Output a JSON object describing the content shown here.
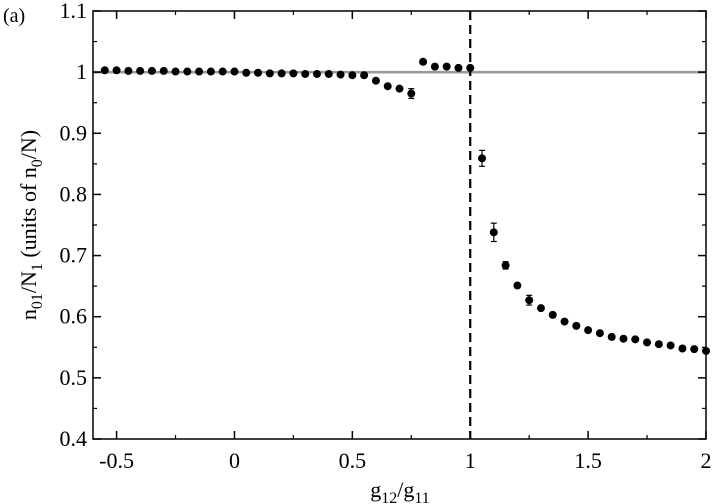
{
  "panel_label": "(a)",
  "chart_data": {
    "type": "scatter",
    "title": "",
    "xlabel": {
      "text": "g",
      "parts": [
        {
          "t": "g"
        },
        {
          "t": "12",
          "sub": true
        },
        {
          "t": "/g"
        },
        {
          "t": "11",
          "sub": true
        }
      ]
    },
    "ylabel": {
      "text": "n01/N1 (units of n0/N)",
      "parts": [
        {
          "t": "n"
        },
        {
          "t": "01",
          "sub": true
        },
        {
          "t": "/N"
        },
        {
          "t": "1",
          "sub": true
        },
        {
          "t": "  (units of n"
        },
        {
          "t": "0",
          "sub": true
        },
        {
          "t": "/N)"
        }
      ]
    },
    "xlim": [
      -0.6,
      2.0
    ],
    "ylim": [
      0.4,
      1.1
    ],
    "xticks": [
      {
        "v": -0.5,
        "label": "-0.5"
      },
      {
        "v": 0,
        "label": "0"
      },
      {
        "v": 0.5,
        "label": "0.5"
      },
      {
        "v": 1,
        "label": "1"
      },
      {
        "v": 1.5,
        "label": "1.5"
      },
      {
        "v": 2,
        "label": "2"
      }
    ],
    "yticks": [
      {
        "v": 0.4,
        "label": "0.4"
      },
      {
        "v": 0.5,
        "label": "0.5"
      },
      {
        "v": 0.6,
        "label": "0.6"
      },
      {
        "v": 0.7,
        "label": "0.7"
      },
      {
        "v": 0.8,
        "label": "0.8"
      },
      {
        "v": 0.9,
        "label": "0.9"
      },
      {
        "v": 1,
        "label": "1"
      },
      {
        "v": 1.1,
        "label": "1.1"
      }
    ],
    "reference_lines": [
      {
        "orientation": "horizontal",
        "value": 1.0,
        "style": "solid",
        "color": "#999999"
      },
      {
        "orientation": "vertical",
        "value": 1.0,
        "style": "dashed",
        "color": "#000000"
      }
    ],
    "series": [
      {
        "marker": "circle",
        "color": "#000000",
        "points": [
          {
            "x": -0.55,
            "y": 1.003
          },
          {
            "x": -0.5,
            "y": 1.003
          },
          {
            "x": -0.45,
            "y": 1.002
          },
          {
            "x": -0.4,
            "y": 1.002
          },
          {
            "x": -0.35,
            "y": 1.002
          },
          {
            "x": -0.3,
            "y": 1.002
          },
          {
            "x": -0.25,
            "y": 1.001
          },
          {
            "x": -0.2,
            "y": 1.001
          },
          {
            "x": -0.15,
            "y": 1.001
          },
          {
            "x": -0.1,
            "y": 1.001
          },
          {
            "x": -0.05,
            "y": 1.001
          },
          {
            "x": 0.0,
            "y": 1.001
          },
          {
            "x": 0.05,
            "y": 0.999
          },
          {
            "x": 0.1,
            "y": 0.999
          },
          {
            "x": 0.15,
            "y": 0.998
          },
          {
            "x": 0.2,
            "y": 0.998
          },
          {
            "x": 0.25,
            "y": 0.998
          },
          {
            "x": 0.3,
            "y": 0.997
          },
          {
            "x": 0.35,
            "y": 0.997
          },
          {
            "x": 0.4,
            "y": 0.997
          },
          {
            "x": 0.45,
            "y": 0.996
          },
          {
            "x": 0.5,
            "y": 0.995
          },
          {
            "x": 0.55,
            "y": 0.995
          },
          {
            "x": 0.6,
            "y": 0.986
          },
          {
            "x": 0.65,
            "y": 0.977
          },
          {
            "x": 0.7,
            "y": 0.973
          },
          {
            "x": 0.75,
            "y": 0.965,
            "err": 0.008
          },
          {
            "x": 0.8,
            "y": 1.017
          },
          {
            "x": 0.85,
            "y": 1.009
          },
          {
            "x": 0.9,
            "y": 1.009
          },
          {
            "x": 0.95,
            "y": 1.007
          },
          {
            "x": 1.0,
            "y": 1.007
          },
          {
            "x": 1.05,
            "y": 0.859,
            "err": 0.013
          },
          {
            "x": 1.1,
            "y": 0.738,
            "err": 0.015
          },
          {
            "x": 1.15,
            "y": 0.684,
            "err": 0.006
          },
          {
            "x": 1.2,
            "y": 0.651
          },
          {
            "x": 1.25,
            "y": 0.627,
            "err": 0.008
          },
          {
            "x": 1.3,
            "y": 0.614
          },
          {
            "x": 1.35,
            "y": 0.603
          },
          {
            "x": 1.4,
            "y": 0.592
          },
          {
            "x": 1.45,
            "y": 0.585
          },
          {
            "x": 1.5,
            "y": 0.578
          },
          {
            "x": 1.55,
            "y": 0.573
          },
          {
            "x": 1.6,
            "y": 0.567
          },
          {
            "x": 1.65,
            "y": 0.564
          },
          {
            "x": 1.7,
            "y": 0.563
          },
          {
            "x": 1.75,
            "y": 0.558
          },
          {
            "x": 1.8,
            "y": 0.555
          },
          {
            "x": 1.85,
            "y": 0.553
          },
          {
            "x": 1.9,
            "y": 0.548
          },
          {
            "x": 1.95,
            "y": 0.547
          },
          {
            "x": 2.0,
            "y": 0.544
          }
        ]
      }
    ]
  }
}
